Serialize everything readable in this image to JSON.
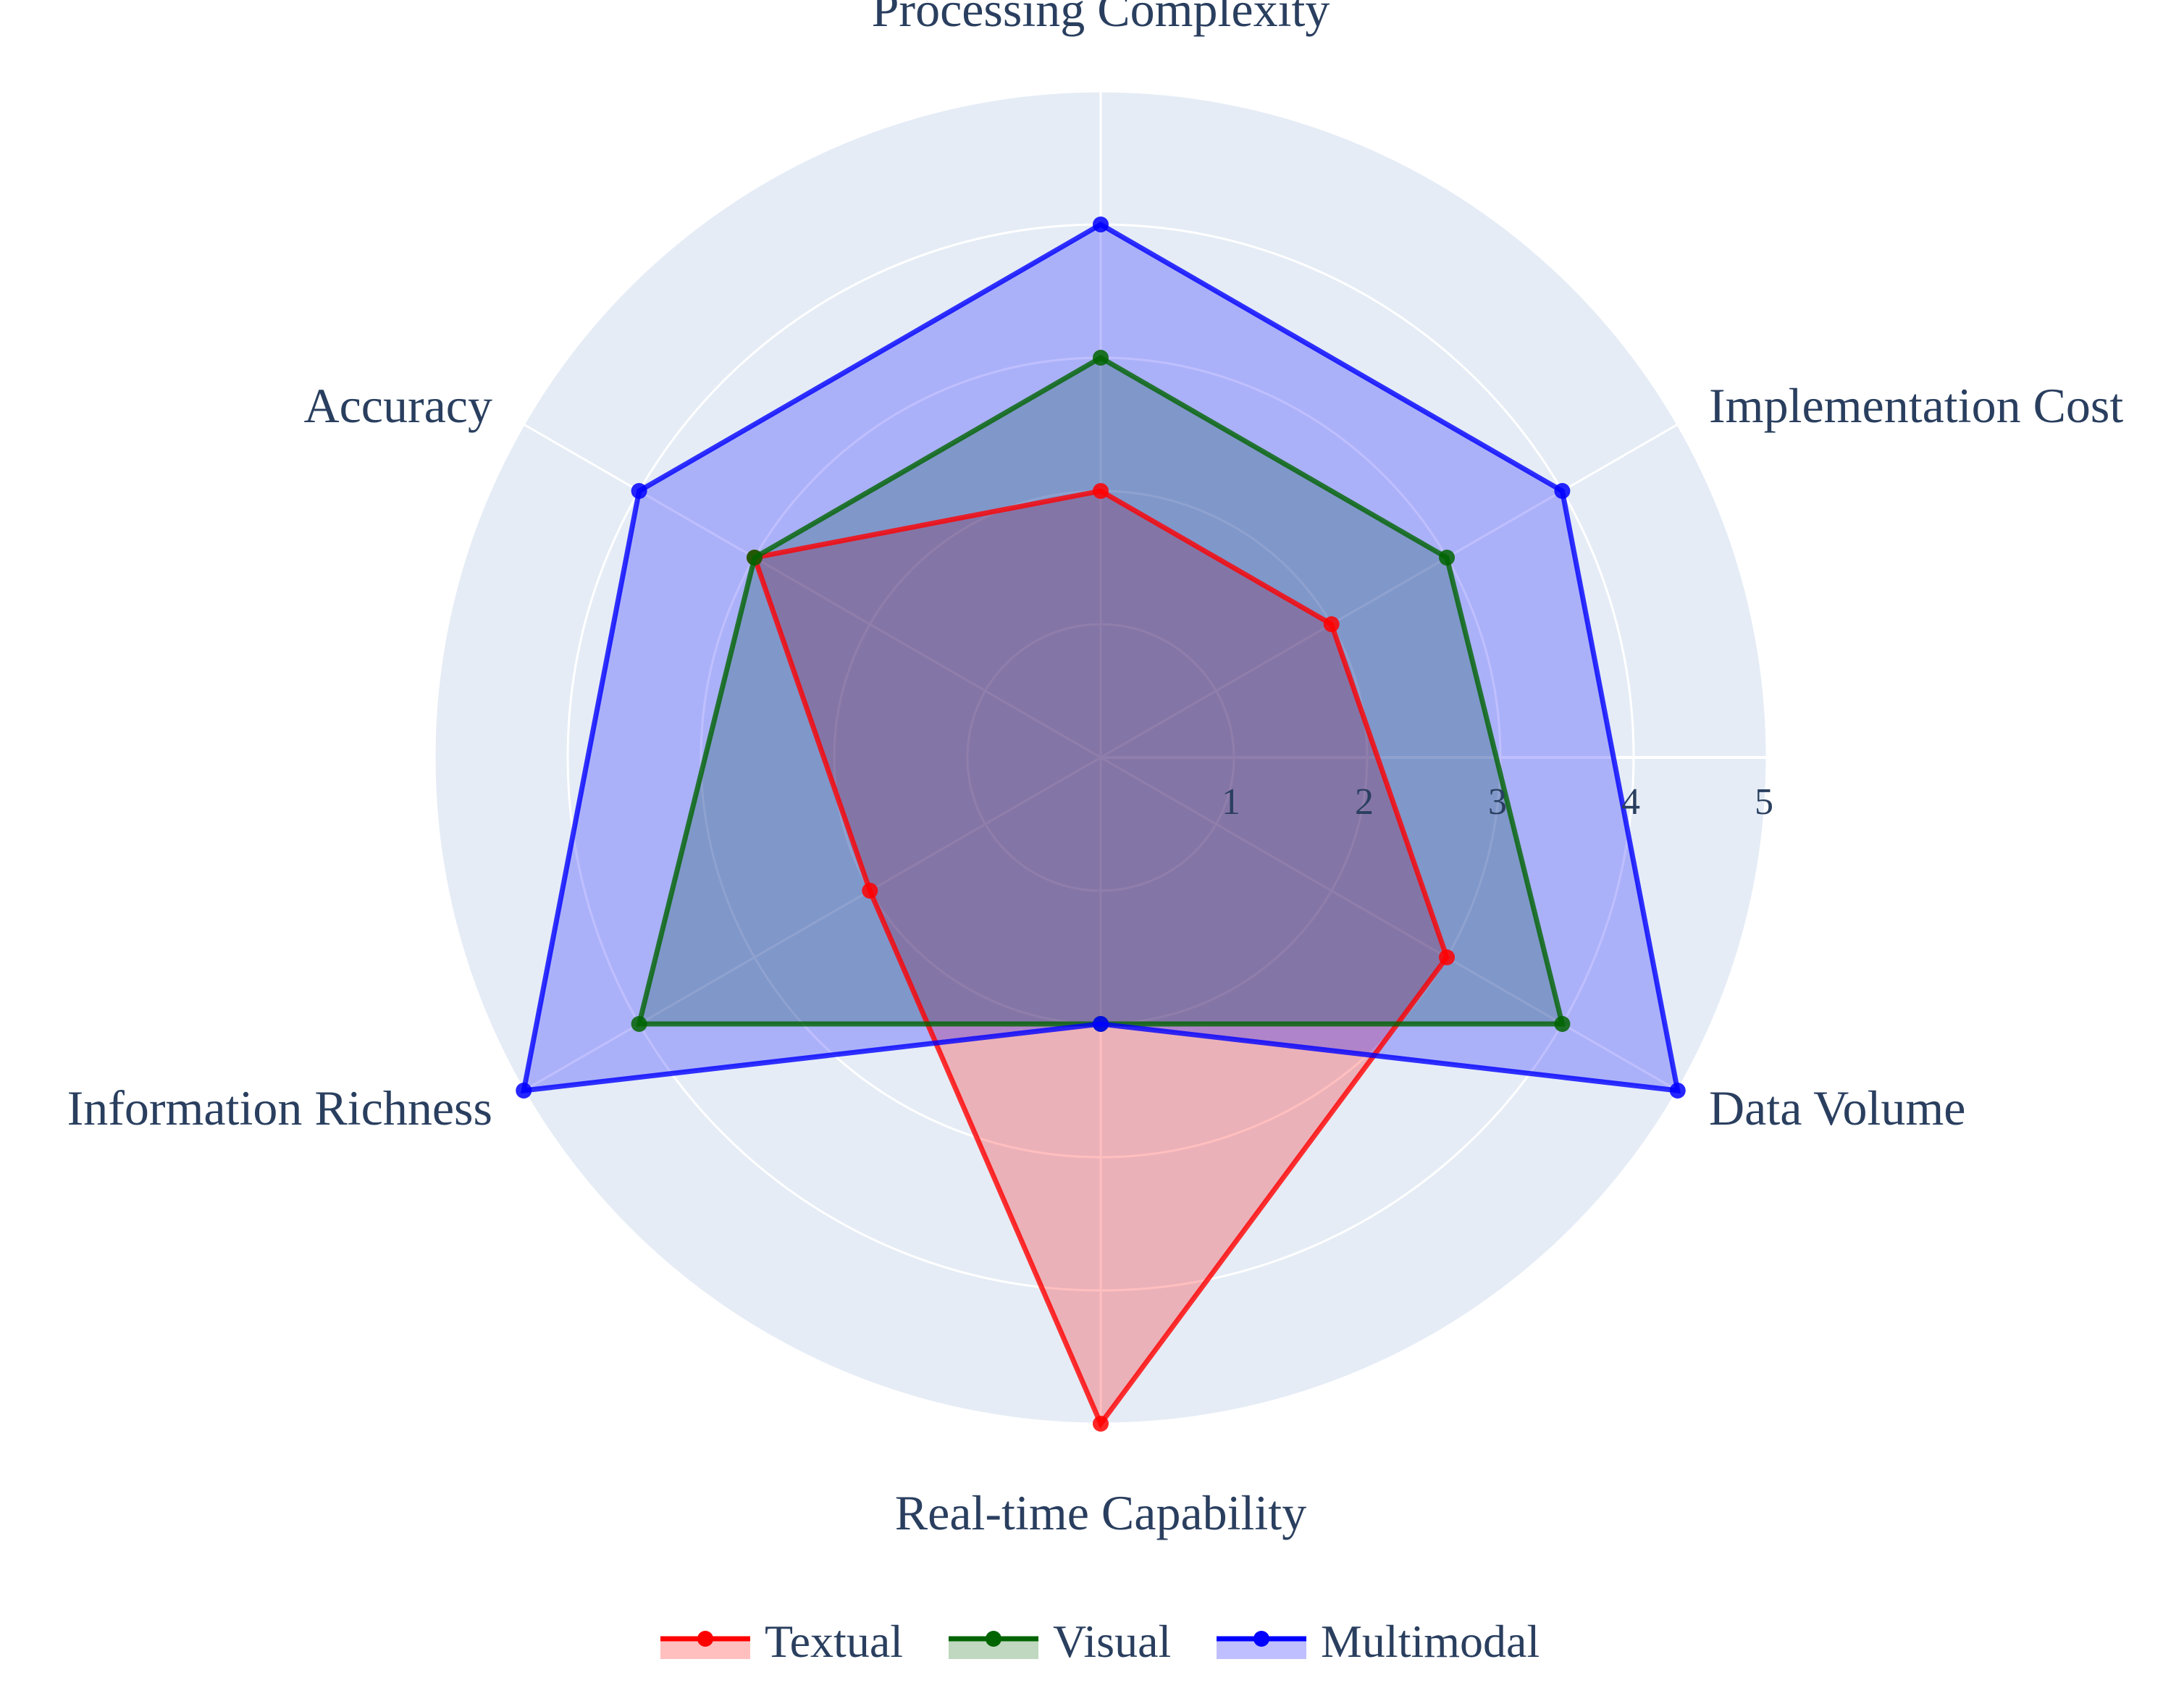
{
  "chart_data": {
    "type": "radar",
    "axes": [
      "Processing Complexity",
      "Implementation Cost",
      "Data Volume",
      "Real-time Capability",
      "Information Richness",
      "Accuracy"
    ],
    "rlim": [
      0,
      5
    ],
    "r_ticks": [
      "1",
      "2",
      "3",
      "4",
      "5"
    ],
    "grid": true,
    "legend_position": "bottom-center",
    "series": [
      {
        "name": "Textual",
        "color": "#ff0000",
        "values": [
          2,
          2,
          3,
          5,
          2,
          3
        ]
      },
      {
        "name": "Visual",
        "color": "#006400",
        "values": [
          3,
          3,
          4,
          2,
          4,
          3
        ]
      },
      {
        "name": "Multimodal",
        "color": "#0000ff",
        "values": [
          4,
          4,
          5,
          2,
          5,
          4
        ]
      }
    ]
  }
}
